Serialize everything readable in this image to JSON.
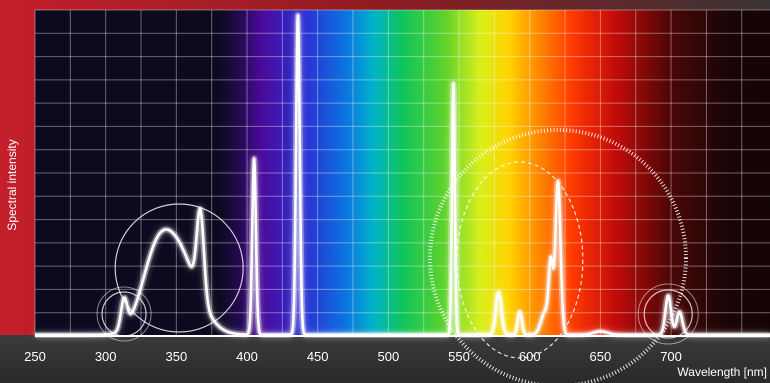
{
  "chart_data": {
    "type": "line",
    "title": "",
    "xlabel": "Wavelength [nm]",
    "ylabel": "Spectral intensity",
    "xlim": [
      250,
      770
    ],
    "ylim": [
      0,
      1
    ],
    "x_ticks": [
      250,
      300,
      350,
      400,
      450,
      500,
      550,
      600,
      650,
      700
    ],
    "grid": true,
    "legend": "none",
    "background": "visible color spectrum band behind plot (violet → red)",
    "series": [
      {
        "color": "#ffffff",
        "peaks": [
          {
            "x": 313,
            "y": 0.09,
            "w": 2.2
          },
          {
            "x": 334,
            "y": 0.14,
            "w": 10
          },
          {
            "x": 350,
            "y": 0.26,
            "w": 14
          },
          {
            "x": 367,
            "y": 0.26,
            "w": 2.5
          },
          {
            "x": 405,
            "y": 0.54,
            "w": 1.3
          },
          {
            "x": 436,
            "y": 0.98,
            "w": 1.3
          },
          {
            "x": 546,
            "y": 0.77,
            "w": 1.0
          },
          {
            "x": 578,
            "y": 0.13,
            "w": 2.0
          },
          {
            "x": 593,
            "y": 0.07,
            "w": 1.5
          },
          {
            "x": 611,
            "y": 0.07,
            "w": 3.0
          },
          {
            "x": 615,
            "y": 0.2,
            "w": 1.5
          },
          {
            "x": 620,
            "y": 0.47,
            "w": 1.8
          },
          {
            "x": 650,
            "y": 0.01,
            "w": 5.0
          },
          {
            "x": 698,
            "y": 0.12,
            "w": 2.0
          },
          {
            "x": 706,
            "y": 0.07,
            "w": 2.0
          }
        ]
      }
    ]
  }
}
